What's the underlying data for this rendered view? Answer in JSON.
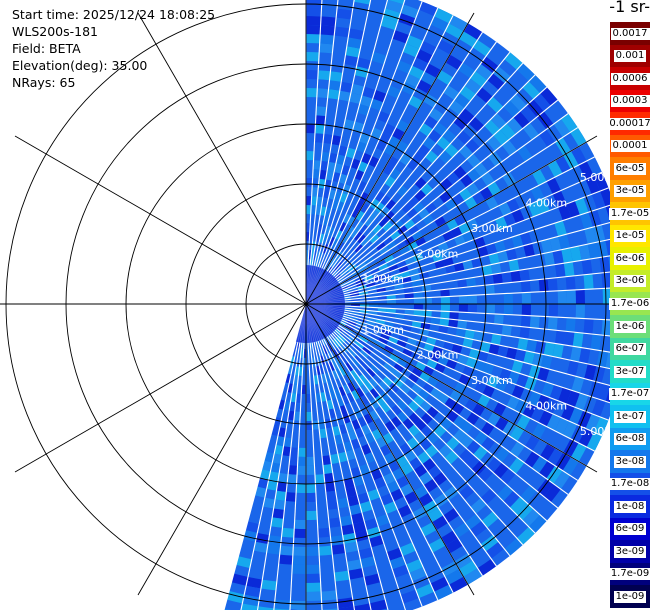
{
  "header": {
    "start_time": "Start time: 2025/12/24 18:08:25",
    "instrument": "WLS200s-181",
    "field": "Field: BETA",
    "elevation": "Elevation(deg): 35.00",
    "nrays": "NRays: 65"
  },
  "colorbar": {
    "unit_title": "-1 sr-",
    "levels": [
      {
        "label": "0.0017",
        "color": "#7a0000"
      },
      {
        "label": "0.001",
        "color": "#a00000"
      },
      {
        "label": "0.0006",
        "color": "#c80000"
      },
      {
        "label": "0.0003",
        "color": "#ec0000"
      },
      {
        "label": "0.00017",
        "color": "#ff2a00"
      },
      {
        "label": "0.0001",
        "color": "#ff5a00"
      },
      {
        "label": "6e-05",
        "color": "#ff7e00"
      },
      {
        "label": "3e-05",
        "color": "#ffa000"
      },
      {
        "label": "1.7e-05",
        "color": "#ffc400"
      },
      {
        "label": "1e-05",
        "color": "#ffe600"
      },
      {
        "label": "6e-06",
        "color": "#e8f000"
      },
      {
        "label": "3e-06",
        "color": "#c4ec2a"
      },
      {
        "label": "1.7e-06",
        "color": "#98e650"
      },
      {
        "label": "1e-06",
        "color": "#6cde78"
      },
      {
        "label": "6e-07",
        "color": "#40d8a0"
      },
      {
        "label": "3e-07",
        "color": "#22dcc8"
      },
      {
        "label": "1.7e-07",
        "color": "#18d6e8"
      },
      {
        "label": "1e-07",
        "color": "#10c0f0"
      },
      {
        "label": "6e-08",
        "color": "#109cf0"
      },
      {
        "label": "3e-08",
        "color": "#1478ec"
      },
      {
        "label": "1.7e-08",
        "color": "#1450e8"
      },
      {
        "label": "1e-08",
        "color": "#0a2ae0"
      },
      {
        "label": "6e-09",
        "color": "#0000d0"
      },
      {
        "label": "3e-09",
        "color": "#0000a8"
      },
      {
        "label": "1.7e-09",
        "color": "#00007c"
      },
      {
        "label": "1e-09",
        "color": "#000050"
      }
    ]
  },
  "chart_data": {
    "type": "ppi",
    "field": "BETA",
    "elevation_deg": 35.0,
    "nrays": 65,
    "range_rings_km": [
      1,
      2,
      3,
      4,
      5
    ],
    "ring_labels": [
      "1.00km",
      "2.00km",
      "3.00km",
      "4.00km",
      "5.00km"
    ],
    "spoke_angles_deg": [
      0,
      30,
      60,
      90,
      120,
      150,
      180,
      210,
      240,
      270,
      300,
      330
    ],
    "azimuth_sector_deg": [
      0,
      195
    ],
    "data_max_range_km": 5.4,
    "dominant_value": "1e-08 to 6e-08",
    "colors": {
      "dominant": "#1a66ea",
      "dark": "#0a2ad8",
      "light": "#16a8ee"
    }
  }
}
